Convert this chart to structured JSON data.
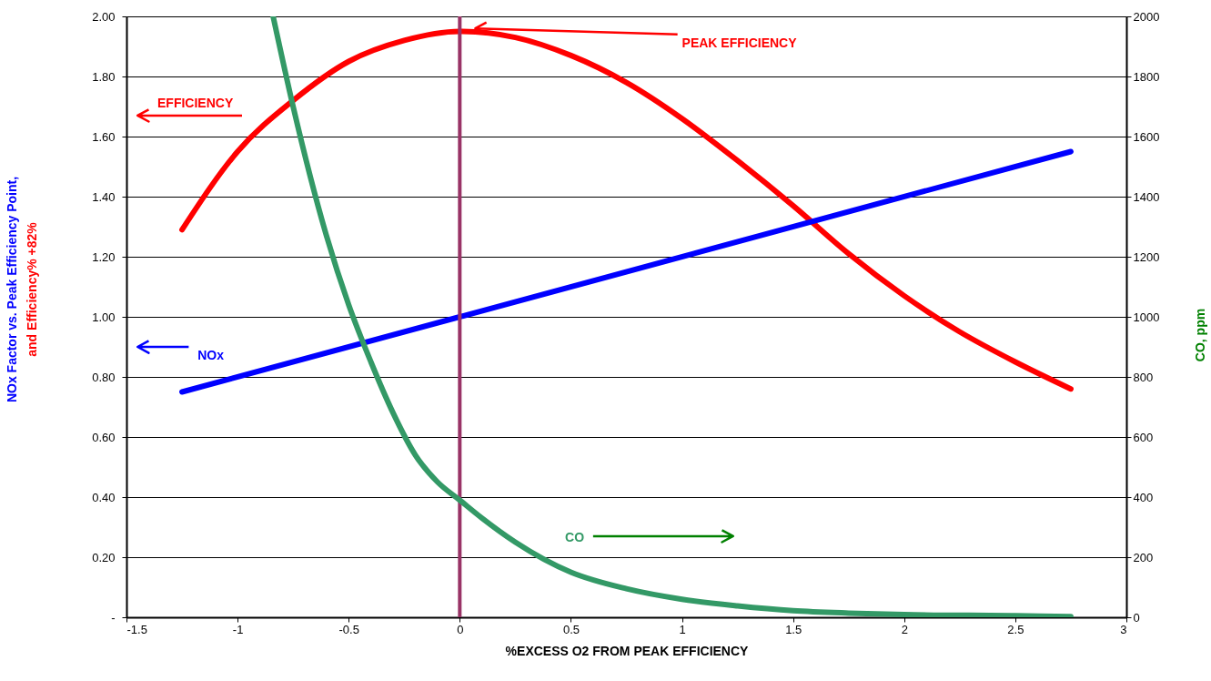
{
  "chart_data": {
    "type": "line",
    "xlabel": "%EXCESS O2 FROM PEAK EFFICIENCY",
    "ylabel": [
      "NOx Factor vs. Peak Efficiency Point,",
      "and Efficiency% +82%"
    ],
    "y2label": "CO, ppm",
    "xlim": [
      -1.5,
      3
    ],
    "xticks": [
      -1.5,
      -1,
      -0.5,
      0,
      0.5,
      1,
      1.5,
      2,
      2.5,
      3
    ],
    "ylim": [
      0,
      2
    ],
    "yticks": [
      {
        "value": 0,
        "label": "-"
      },
      {
        "value": 0.2,
        "label": "0.20"
      },
      {
        "value": 0.4,
        "label": "0.40"
      },
      {
        "value": 0.6,
        "label": "0.60"
      },
      {
        "value": 0.8,
        "label": "0.80"
      },
      {
        "value": 1,
        "label": "1.00"
      },
      {
        "value": 1.2,
        "label": "1.20"
      },
      {
        "value": 1.4,
        "label": "1.40"
      },
      {
        "value": 1.6,
        "label": "1.60"
      },
      {
        "value": 1.8,
        "label": "1.80"
      },
      {
        "value": 2,
        "label": "2.00"
      }
    ],
    "y2lim": [
      0,
      2000
    ],
    "y2ticks": [
      0,
      200,
      400,
      600,
      800,
      1000,
      1200,
      1400,
      1600,
      1800,
      2000
    ],
    "grid": "y",
    "marker": "none",
    "line_style": "solid",
    "series": [
      {
        "color": "#ff0000",
        "x": [
          -1.25,
          -1.0,
          -0.75,
          -0.5,
          -0.25,
          0,
          0.25,
          0.5,
          0.75,
          1.0,
          1.25,
          1.5,
          1.75,
          2.0,
          2.25,
          2.5,
          2.75
        ],
        "values": [
          1.29,
          1.55,
          1.72,
          1.85,
          1.92,
          1.95,
          1.93,
          1.87,
          1.78,
          1.66,
          1.52,
          1.37,
          1.21,
          1.07,
          0.95,
          0.85,
          0.76
        ]
      },
      {
        "color": "#0000ff",
        "x": [
          -1.25,
          0,
          2.75
        ],
        "values": [
          0.75,
          1.0,
          1.55
        ]
      },
      {
        "color": "#339966",
        "axis": "y2",
        "x": [
          -0.84,
          -0.75,
          -0.6,
          -0.5,
          -0.4,
          -0.3,
          -0.2,
          -0.1,
          0,
          0.1,
          0.25,
          0.5,
          0.75,
          1.0,
          1.25,
          1.5,
          1.75,
          2.0,
          2.5,
          2.75
        ],
        "values": [
          2000,
          1700,
          1270,
          1040,
          850,
          680,
          540,
          450,
          390,
          330,
          250,
          150,
          95,
          60,
          38,
          22,
          14,
          9,
          5,
          2
        ]
      }
    ],
    "ref_lines": [
      {
        "axis": "x",
        "value": 0,
        "color": "#993366"
      }
    ],
    "annotations": [
      "PEAK EFFICIENCY",
      "EFFICIENCY",
      "NOx",
      "CO"
    ]
  }
}
